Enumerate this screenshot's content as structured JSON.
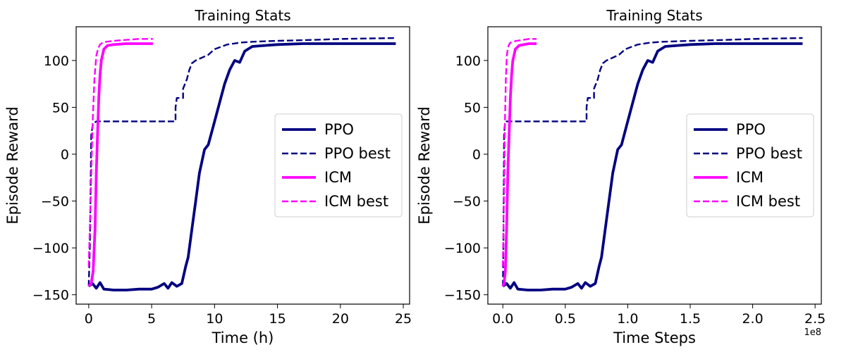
{
  "chart_data": [
    {
      "type": "line",
      "title": "Training Stats",
      "xlabel": "Time (h)",
      "ylabel": "Episode Reward",
      "xlim": [
        -1,
        25.5
      ],
      "ylim": [
        -160,
        136
      ],
      "xticks": [
        0,
        5,
        10,
        15,
        20,
        25
      ],
      "yticks": [
        -150,
        -100,
        -50,
        0,
        50,
        100
      ],
      "xtick_labels": [
        "0",
        "5",
        "10",
        "15",
        "20",
        "25"
      ],
      "ytick_labels": [
        "−150",
        "−100",
        "−50",
        "0",
        "50",
        "100"
      ],
      "legend_position": "center-right",
      "series": [
        {
          "name": "PPO",
          "color": "#000080",
          "style": "solid",
          "x": [
            0,
            0.3,
            0.6,
            0.9,
            1.2,
            2,
            3,
            4,
            5,
            5.5,
            6,
            6.3,
            6.6,
            7,
            7.4,
            7.7,
            7.9,
            8.2,
            8.5,
            8.8,
            9.2,
            9.5,
            9.9,
            10.4,
            10.8,
            11.2,
            11.6,
            12,
            12.4,
            13,
            14,
            15,
            17,
            20,
            22,
            24.4
          ],
          "y": [
            -141,
            -138,
            -143,
            -137,
            -144,
            -145,
            -145,
            -144,
            -144,
            -142,
            -138,
            -143,
            -137,
            -141,
            -138,
            -120,
            -110,
            -80,
            -50,
            -20,
            5,
            10,
            30,
            55,
            75,
            90,
            100,
            98,
            110,
            115,
            116,
            117,
            118,
            118,
            118,
            118
          ]
        },
        {
          "name": "PPO best",
          "color": "#000080",
          "style": "dashed",
          "x": [
            0,
            0.1,
            0.2,
            0.3,
            0.4,
            0.5,
            0.6,
            6.9,
            6.9,
            7.0,
            7.5,
            7.5,
            7.8,
            8.0,
            8.2,
            8.5,
            9,
            9.5,
            10,
            11,
            12,
            13,
            15,
            18,
            20,
            24.4
          ],
          "y": [
            -141,
            -95,
            20,
            30,
            33,
            34,
            35,
            35,
            50,
            60,
            60,
            70,
            80,
            90,
            97,
            100,
            103,
            106,
            112,
            117,
            119,
            120,
            121,
            122,
            123,
            124
          ]
        },
        {
          "name": "ICM",
          "color": "#ff00ff",
          "style": "solid",
          "x": [
            0,
            0.2,
            0.35,
            0.5,
            0.6,
            0.7,
            0.8,
            0.9,
            1.0,
            1.2,
            1.5,
            2,
            3,
            4,
            5.1
          ],
          "y": [
            -141,
            -138,
            -125,
            -80,
            -20,
            20,
            60,
            85,
            100,
            112,
            116,
            117,
            118,
            118,
            118
          ]
        },
        {
          "name": "ICM best",
          "color": "#ff00ff",
          "style": "dashed",
          "x": [
            0,
            0.15,
            0.3,
            0.45,
            0.6,
            0.75,
            0.9,
            1.1,
            1.4,
            2,
            3,
            4,
            5.1
          ],
          "y": [
            -120,
            -50,
            30,
            80,
            105,
            113,
            117,
            119,
            120,
            121,
            122,
            123,
            123
          ]
        }
      ]
    },
    {
      "type": "line",
      "title": "Training Stats",
      "xlabel": "Time Steps",
      "ylabel": "Episode Reward",
      "xlim": [
        -0.12,
        2.55
      ],
      "ylim": [
        -160,
        136
      ],
      "xticks": [
        0,
        0.5,
        1.0,
        1.5,
        2.0,
        2.5
      ],
      "yticks": [
        -150,
        -100,
        -50,
        0,
        50,
        100
      ],
      "xtick_labels": [
        "0.0",
        "0.5",
        "1.0",
        "1.5",
        "2.0",
        "2.5"
      ],
      "ytick_labels": [
        "−150",
        "−100",
        "−50",
        "0",
        "50",
        "100"
      ],
      "x_offset_label": "1e8",
      "legend_position": "center-right",
      "series": [
        {
          "name": "PPO",
          "color": "#000080",
          "style": "solid",
          "x": [
            0,
            0.03,
            0.06,
            0.09,
            0.12,
            0.2,
            0.3,
            0.4,
            0.5,
            0.55,
            0.6,
            0.63,
            0.66,
            0.7,
            0.74,
            0.77,
            0.79,
            0.82,
            0.85,
            0.88,
            0.92,
            0.95,
            0.99,
            1.04,
            1.08,
            1.12,
            1.16,
            1.2,
            1.24,
            1.3,
            1.4,
            1.5,
            1.7,
            2.0,
            2.2,
            2.4
          ],
          "y": [
            -141,
            -138,
            -143,
            -137,
            -144,
            -145,
            -145,
            -144,
            -144,
            -142,
            -138,
            -143,
            -137,
            -141,
            -138,
            -120,
            -110,
            -80,
            -50,
            -20,
            5,
            10,
            30,
            55,
            75,
            90,
            100,
            98,
            110,
            115,
            116,
            117,
            118,
            118,
            118,
            118
          ]
        },
        {
          "name": "PPO best",
          "color": "#000080",
          "style": "dashed",
          "x": [
            0,
            0.005,
            0.01,
            0.015,
            0.02,
            0.025,
            0.03,
            0.67,
            0.67,
            0.68,
            0.73,
            0.73,
            0.76,
            0.78,
            0.8,
            0.83,
            0.88,
            0.93,
            0.98,
            1.08,
            1.18,
            1.28,
            1.5,
            1.8,
            2.0,
            2.4
          ],
          "y": [
            -141,
            -95,
            20,
            30,
            33,
            34,
            35,
            35,
            50,
            60,
            60,
            70,
            80,
            90,
            97,
            100,
            103,
            106,
            112,
            117,
            119,
            120,
            121,
            122,
            123,
            124
          ]
        },
        {
          "name": "ICM",
          "color": "#ff00ff",
          "style": "solid",
          "x": [
            0,
            0.01,
            0.02,
            0.03,
            0.04,
            0.05,
            0.06,
            0.07,
            0.08,
            0.1,
            0.13,
            0.17,
            0.21,
            0.24,
            0.27
          ],
          "y": [
            -141,
            -138,
            -125,
            -80,
            -20,
            20,
            60,
            85,
            100,
            112,
            116,
            117,
            118,
            118,
            118
          ]
        },
        {
          "name": "ICM best",
          "color": "#ff00ff",
          "style": "dashed",
          "x": [
            0,
            0.008,
            0.016,
            0.024,
            0.032,
            0.04,
            0.05,
            0.06,
            0.08,
            0.11,
            0.16,
            0.21,
            0.27
          ],
          "y": [
            -120,
            -50,
            30,
            80,
            105,
            113,
            117,
            119,
            120,
            121,
            122,
            123,
            123
          ]
        }
      ]
    }
  ]
}
